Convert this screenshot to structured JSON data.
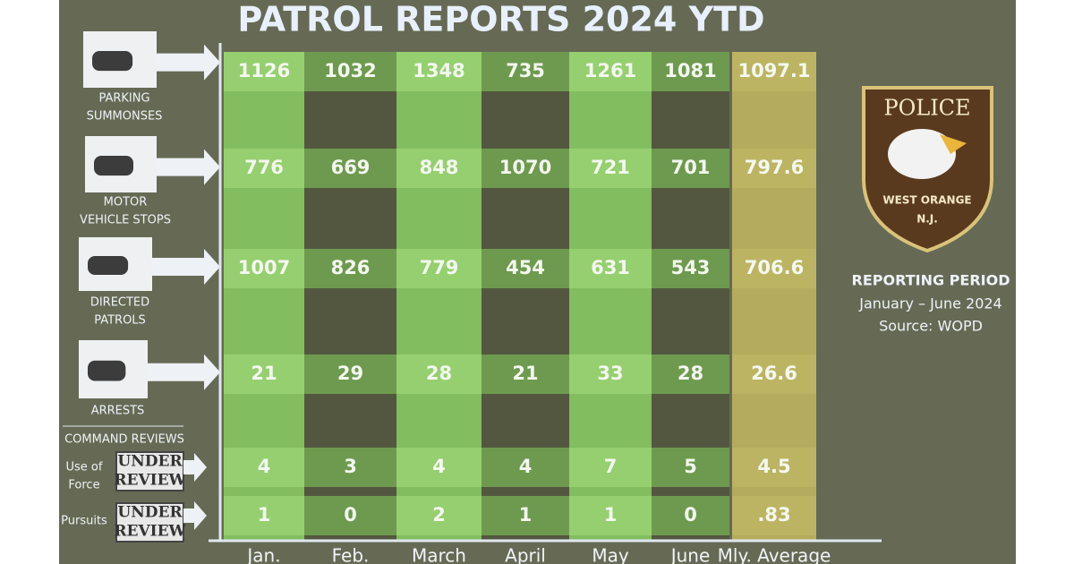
{
  "title": "PATROL REPORTS 2024 YTD",
  "columns": [
    "Jan.",
    "Feb.",
    "March",
    "April",
    "May",
    "June",
    "Mly. Average"
  ],
  "command_reviews": "COMMAND REVIEWS",
  "rows": [
    {
      "label": [
        "PARKING",
        "SUMMONSES"
      ],
      "values": [
        "1126",
        "1032",
        "1348",
        "735",
        "1261",
        "1081",
        "1097.1"
      ]
    },
    {
      "label": [
        "MOTOR",
        "VEHICLE STOPS"
      ],
      "values": [
        "776",
        "669",
        "848",
        "1070",
        "721",
        "701",
        "797.6"
      ]
    },
    {
      "label": [
        "DIRECTED",
        "PATROLS"
      ],
      "values": [
        "1007",
        "826",
        "779",
        "454",
        "631",
        "543",
        "706.6"
      ]
    },
    {
      "label": [
        "ARRESTS"
      ],
      "values": [
        "21",
        "29",
        "28",
        "21",
        "33",
        "28",
        "26.6"
      ]
    },
    {
      "label": [
        "Use of",
        "Force"
      ],
      "stamp": [
        "UNDER",
        "REVIEW"
      ],
      "values": [
        "4",
        "3",
        "4",
        "4",
        "7",
        "5",
        "4.5"
      ]
    },
    {
      "label": [
        "Pursuits"
      ],
      "stamp": [
        "UNDER",
        "REVIEW"
      ],
      "values": [
        "1",
        "0",
        "2",
        "1",
        "1",
        "0",
        ".83"
      ]
    }
  ],
  "badge": {
    "top": "POLICE",
    "city": "WEST ORANGE",
    "state": "N.J."
  },
  "reporting": {
    "title": "REPORTING PERIOD",
    "period": "January – June 2024",
    "source": "Source: WOPD"
  }
}
